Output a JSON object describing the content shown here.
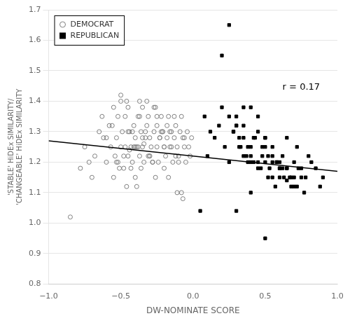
{
  "chart_data": {
    "type": "scatter",
    "xlabel": "DW-NOMINATE SCORE",
    "ylabel": "'STABLE' HiDEx SIMILARITY/\n'CHANGEABLE' HiDEx SIMILARITY",
    "xlim": [
      -1.0,
      1.0
    ],
    "ylim": [
      0.8,
      1.7
    ],
    "xticks": [
      {
        "value": -1.0,
        "label": "−1.0"
      },
      {
        "value": -0.5,
        "label": "−0.5"
      },
      {
        "value": 0.0,
        "label": "0.0"
      },
      {
        "value": 0.5,
        "label": "0.5"
      },
      {
        "value": 1.0,
        "label": "1.0"
      }
    ],
    "yticks": [
      0.8,
      0.9,
      {
        "value": 1.0,
        "label": "1.0"
      },
      1.1,
      1.2,
      1.3,
      1.4,
      1.5,
      1.6,
      1.7
    ],
    "grid": "y",
    "legend": "upper left",
    "background_color": "#ffffff",
    "annotations": [
      {
        "text": "r = 0.17",
        "x": 0.62,
        "y": 1.43
      }
    ],
    "series": [
      {
        "name": "DEMOCRAT",
        "color": "#808080",
        "marker": "circle_open",
        "x": [
          -0.85,
          -0.78,
          -0.75,
          -0.72,
          -0.7,
          -0.68,
          -0.65,
          -0.63,
          -0.62,
          -0.6,
          -0.58,
          -0.57,
          -0.55,
          -0.54,
          -0.53,
          -0.52,
          -0.5,
          -0.5,
          -0.49,
          -0.48,
          -0.47,
          -0.46,
          -0.45,
          -0.45,
          -0.44,
          -0.43,
          -0.42,
          -0.41,
          -0.4,
          -0.4,
          -0.39,
          -0.38,
          -0.37,
          -0.37,
          -0.36,
          -0.35,
          -0.35,
          -0.34,
          -0.33,
          -0.32,
          -0.31,
          -0.3,
          -0.3,
          -0.29,
          -0.28,
          -0.27,
          -0.26,
          -0.25,
          -0.25,
          -0.24,
          -0.23,
          -0.22,
          -0.21,
          -0.2,
          -0.2,
          -0.19,
          -0.18,
          -0.17,
          -0.16,
          -0.15,
          -0.14,
          -0.13,
          -0.12,
          -0.11,
          -0.1,
          -0.09,
          -0.08,
          -0.07,
          -0.06,
          -0.05,
          -0.04,
          -0.03,
          -0.02,
          -0.01,
          -0.5,
          -0.45,
          -0.4,
          -0.35,
          -0.3,
          -0.25,
          -0.2,
          -0.15,
          -0.1,
          -0.55,
          -0.48,
          -0.43,
          -0.38,
          -0.33,
          -0.28,
          -0.23,
          -0.18,
          -0.13,
          -0.08,
          -0.52,
          -0.46,
          -0.41,
          -0.36,
          -0.31,
          -0.26,
          -0.21,
          -0.16,
          -0.11,
          -0.06,
          -0.53,
          -0.47,
          -0.42,
          -0.37,
          -0.32,
          -0.27,
          -0.22,
          -0.17,
          -0.12,
          -0.07,
          -0.6,
          -0.56,
          -0.51,
          -0.44,
          -0.39,
          -0.34
        ],
        "values": [
          1.02,
          1.18,
          1.25,
          1.2,
          1.15,
          1.22,
          1.3,
          1.35,
          1.28,
          1.2,
          1.32,
          1.25,
          1.38,
          1.22,
          1.28,
          1.35,
          1.42,
          1.25,
          1.3,
          1.18,
          1.35,
          1.4,
          1.38,
          1.22,
          1.3,
          1.25,
          1.2,
          1.32,
          1.28,
          1.15,
          1.25,
          1.35,
          1.4,
          1.22,
          1.3,
          1.38,
          1.25,
          1.2,
          1.28,
          1.32,
          1.35,
          1.28,
          1.22,
          1.25,
          1.2,
          1.3,
          1.38,
          1.32,
          1.25,
          1.2,
          1.28,
          1.35,
          1.3,
          1.25,
          1.18,
          1.22,
          1.28,
          1.35,
          1.3,
          1.25,
          1.2,
          1.28,
          1.32,
          1.25,
          1.22,
          1.3,
          1.35,
          1.28,
          1.25,
          1.2,
          1.3,
          1.25,
          1.22,
          1.28,
          1.4,
          1.3,
          1.25,
          1.28,
          1.22,
          1.35,
          1.25,
          1.3,
          1.2,
          1.15,
          1.22,
          1.18,
          1.25,
          1.3,
          1.2,
          1.28,
          1.32,
          1.35,
          1.1,
          1.2,
          1.12,
          1.25,
          1.18,
          1.22,
          1.15,
          1.3,
          1.25,
          1.1,
          1.28,
          1.2,
          1.25,
          1.3,
          1.35,
          1.4,
          1.38,
          1.3,
          1.15,
          1.22,
          1.08,
          1.28,
          1.32,
          1.18,
          1.24,
          1.12,
          1.26
        ]
      },
      {
        "name": "REPUBLICAN",
        "color": "#000000",
        "marker": "square",
        "x": [
          0.05,
          0.08,
          0.1,
          0.12,
          0.15,
          0.18,
          0.2,
          0.22,
          0.25,
          0.28,
          0.3,
          0.32,
          0.35,
          0.35,
          0.38,
          0.4,
          0.4,
          0.42,
          0.45,
          0.45,
          0.48,
          0.5,
          0.5,
          0.52,
          0.55,
          0.55,
          0.58,
          0.6,
          0.62,
          0.65,
          0.68,
          0.7,
          0.72,
          0.75,
          0.78,
          0.8,
          0.82,
          0.85,
          0.88,
          0.9,
          0.25,
          0.3,
          0.35,
          0.4,
          0.45,
          0.5,
          0.55,
          0.6,
          0.65,
          0.7,
          0.28,
          0.33,
          0.38,
          0.43,
          0.48,
          0.53,
          0.58,
          0.63,
          0.68,
          0.73,
          0.3,
          0.35,
          0.4,
          0.45,
          0.5,
          0.55,
          0.6,
          0.65,
          0.7,
          0.75,
          0.32,
          0.37,
          0.42,
          0.47,
          0.52,
          0.57,
          0.62,
          0.67,
          0.72,
          0.77,
          0.2,
          0.25,
          0.3,
          0.4,
          0.5,
          0.6,
          0.65
        ],
        "values": [
          1.04,
          1.35,
          1.22,
          1.3,
          1.28,
          1.32,
          1.38,
          1.25,
          1.2,
          1.3,
          1.35,
          1.28,
          1.32,
          1.22,
          1.25,
          1.38,
          1.2,
          1.28,
          1.35,
          1.3,
          1.25,
          1.2,
          1.28,
          1.22,
          1.15,
          1.25,
          1.2,
          1.18,
          1.22,
          1.28,
          1.15,
          1.2,
          1.25,
          1.18,
          1.15,
          1.22,
          1.2,
          1.18,
          1.12,
          1.15,
          1.35,
          1.32,
          1.38,
          1.25,
          1.2,
          1.28,
          1.22,
          1.2,
          1.18,
          1.15,
          1.3,
          1.25,
          1.2,
          1.28,
          1.22,
          1.18,
          1.2,
          1.15,
          1.12,
          1.18,
          1.32,
          1.28,
          1.22,
          1.18,
          1.25,
          1.2,
          1.15,
          1.18,
          1.12,
          1.15,
          1.25,
          1.22,
          1.2,
          1.18,
          1.15,
          1.12,
          1.18,
          1.15,
          1.12,
          1.1,
          1.55,
          1.65,
          1.04,
          1.1,
          0.95,
          1.18,
          1.14
        ]
      },
      {
        "type": "line",
        "color": "#000000",
        "x": [
          -1.0,
          1.0
        ],
        "values": [
          1.27,
          1.17
        ]
      }
    ]
  }
}
